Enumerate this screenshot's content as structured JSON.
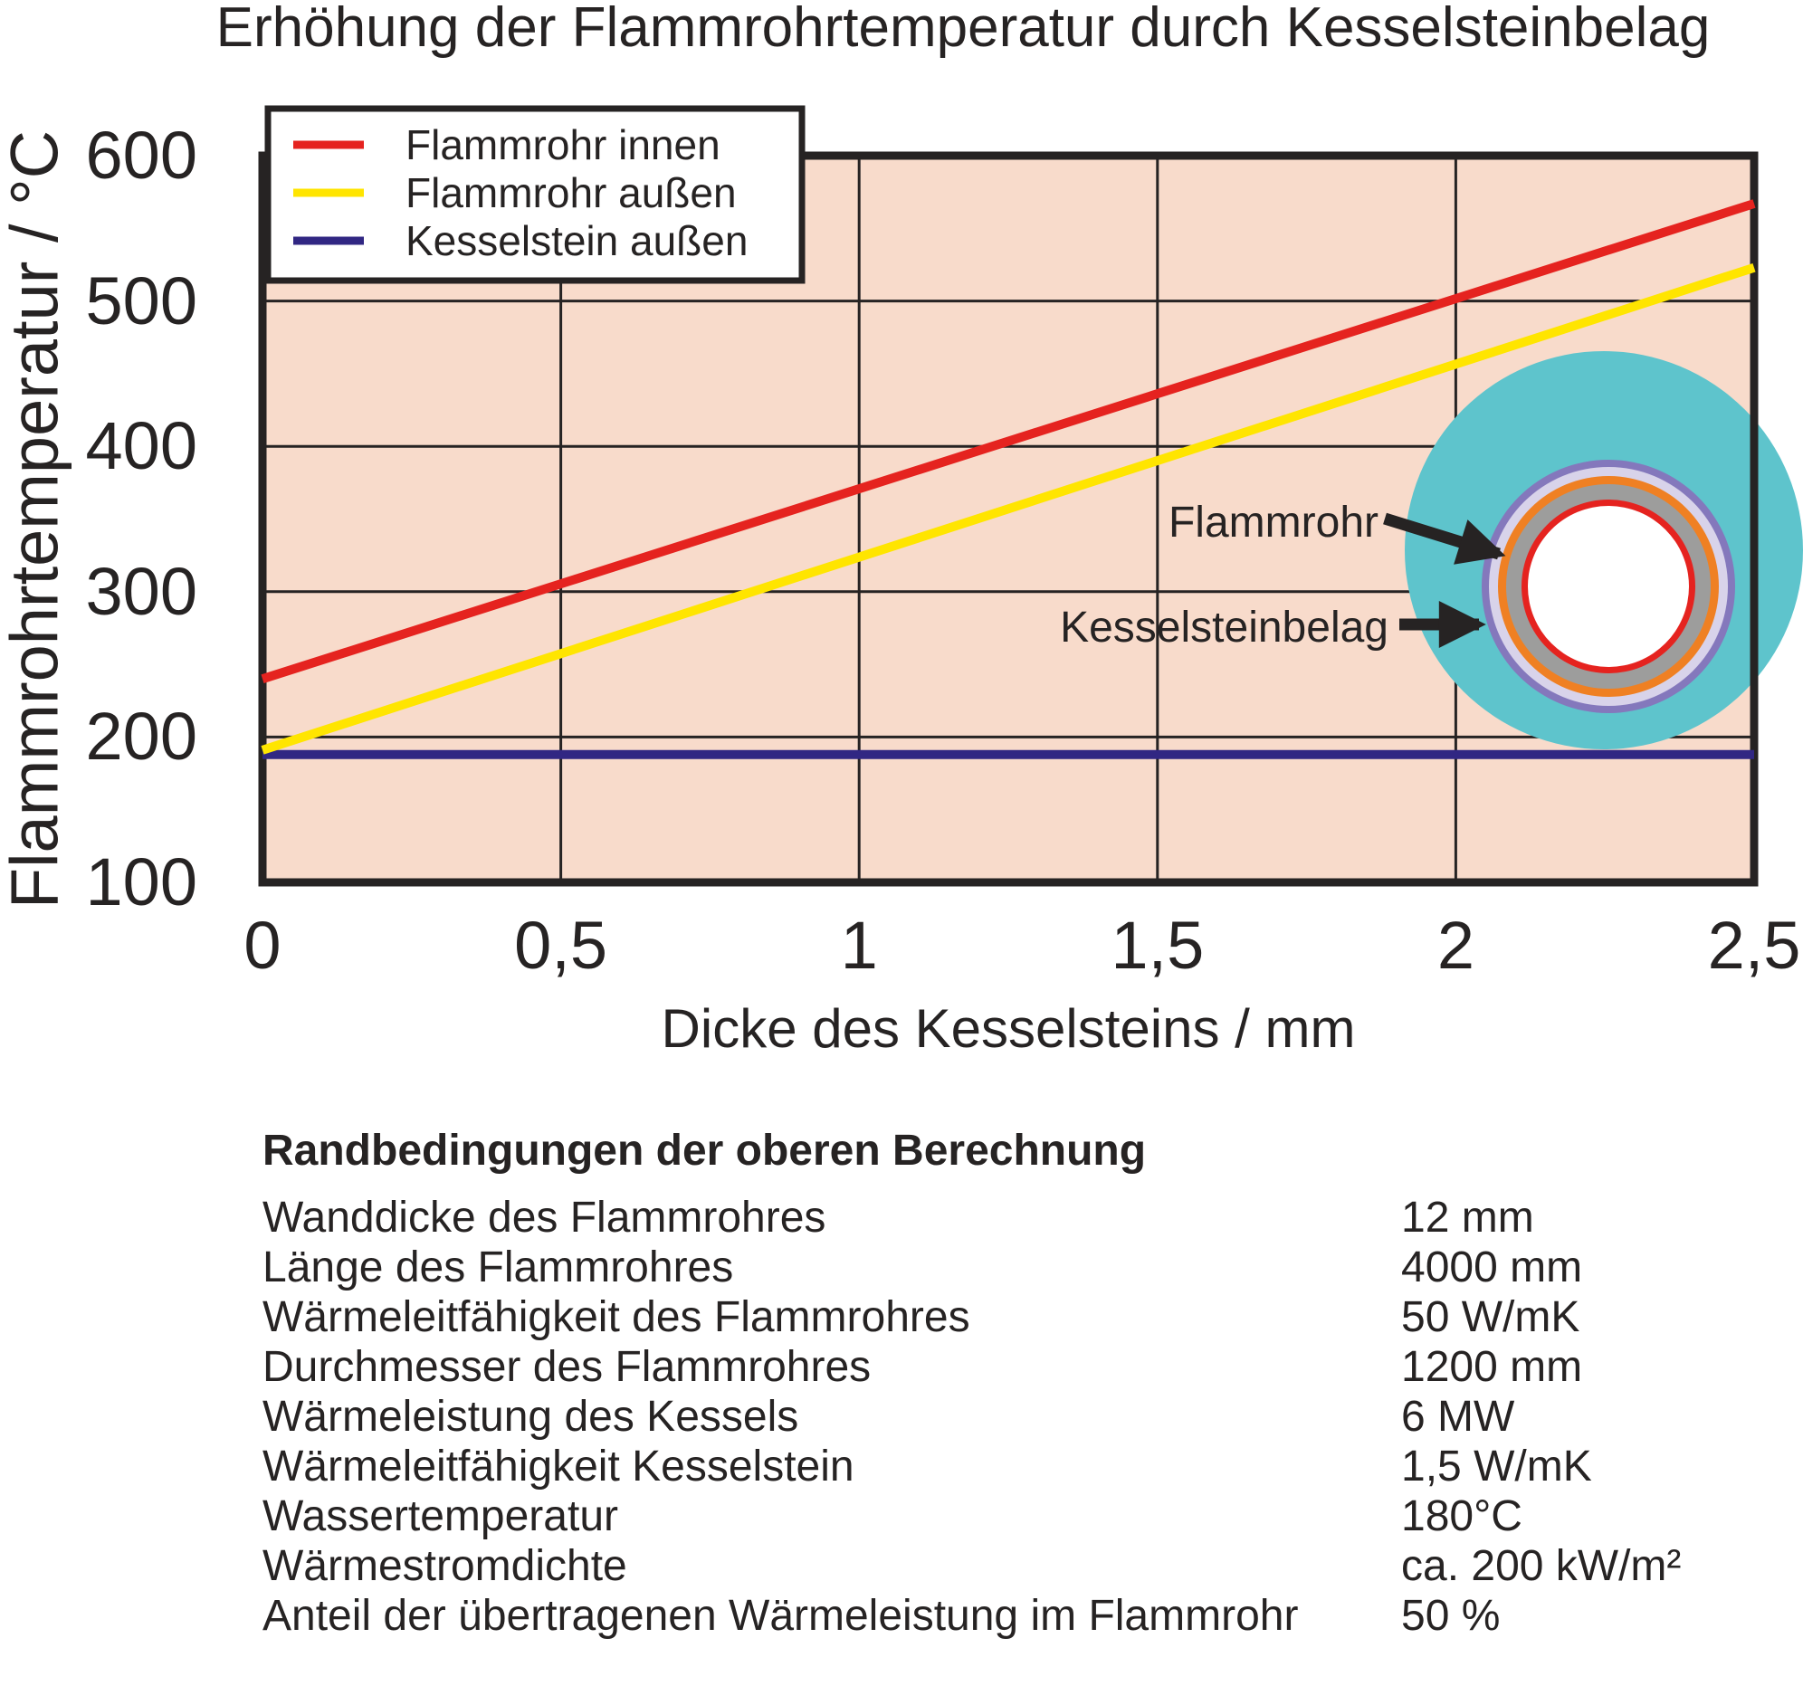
{
  "title": "Erhöhung der Flammrohrtemperatur durch Kesselsteinbelag",
  "colors": {
    "ink": "#262323",
    "plot_background": "#f8dbcb",
    "red": "#e5231f",
    "yellow": "#ffe500",
    "navy": "#312783",
    "water_teal": "#5ec4cc",
    "scale_border_purple": "#8478bc",
    "scale_lavender": "#d8d3ea",
    "tube_outer_orange": "#ef8023",
    "tube_wall_gray": "#9d9d9c",
    "tube_inner_red": "#e5231f",
    "bore_white": "#ffffff"
  },
  "chart": {
    "y_axis": {
      "title": "Flammrohrtemperatur / °C",
      "ticks": [
        "600",
        "500",
        "400",
        "300",
        "200",
        "100"
      ]
    },
    "x_axis": {
      "title": "Dicke des Kesselsteins / mm",
      "ticks": [
        "0",
        "0,5",
        "1",
        "1,5",
        "2",
        "2,5"
      ]
    },
    "legend": [
      {
        "label": "Flammrohr innen",
        "color": "#e5231f"
      },
      {
        "label": "Flammrohr außen",
        "color": "#ffe500"
      },
      {
        "label": "Kesselstein außen",
        "color": "#312783"
      }
    ]
  },
  "chart_data": {
    "type": "line",
    "title": "Erhöhung der Flammrohrtemperatur durch Kesselsteinbelag",
    "xlabel": "Dicke des Kesselsteins / mm",
    "ylabel": "Flammrohrtemperatur / °C",
    "xlim": [
      0,
      2.5
    ],
    "ylim": [
      100,
      600
    ],
    "x": [
      0,
      2.5
    ],
    "series": [
      {
        "name": "Flammrohr innen",
        "color": "#e5231f",
        "values": [
          240,
          567
        ]
      },
      {
        "name": "Flammrohr außen",
        "color": "#ffe500",
        "values": [
          191,
          523
        ]
      },
      {
        "name": "Kesselstein außen",
        "color": "#312783",
        "values": [
          188,
          188
        ]
      }
    ],
    "grid": true,
    "legend_position": "top-left",
    "plot_bg": "#f8dbcb"
  },
  "inset": {
    "flammrohr_label": "Flammrohr",
    "kesselstein_label": "Kesselsteinbelag"
  },
  "conditions": {
    "heading": "Randbedingungen der oberen Berechnung",
    "rows": [
      {
        "label": "Wanddicke des Flammrohres",
        "value": "12 mm"
      },
      {
        "label": "Länge des Flammrohres",
        "value": "4000 mm"
      },
      {
        "label": "Wärmeleitfähigkeit des Flammrohres",
        "value": "50 W/mK"
      },
      {
        "label": "Durchmesser des Flammrohres",
        "value": "1200 mm"
      },
      {
        "label": "Wärmeleistung des Kessels",
        "value": "6 MW"
      },
      {
        "label": "Wärmeleitfähigkeit Kesselstein",
        "value": "1,5 W/mK"
      },
      {
        "label": "Wassertemperatur",
        "value": "180°C"
      },
      {
        "label": "Wärmestromdichte",
        "value": "ca. 200 kW/m²"
      },
      {
        "label": "Anteil der übertragenen Wärmeleistung im Flammrohr",
        "value": "50 %"
      }
    ]
  }
}
